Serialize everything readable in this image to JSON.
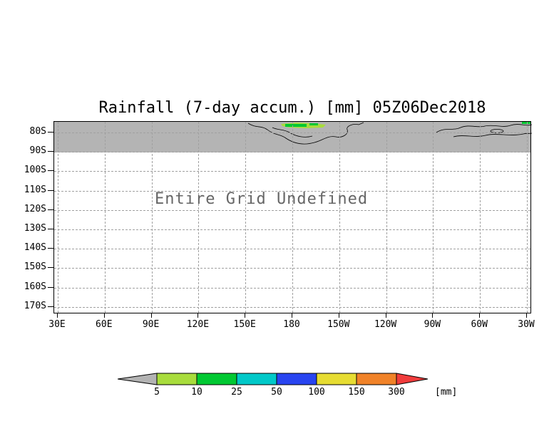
{
  "title": "Rainfall (7-day accum.) [mm] 05Z06Dec2018",
  "plot": {
    "annotation": "Entire Grid Undefined",
    "band_color": "#b4b4b4",
    "lat_ticks": [
      "80S",
      "90S",
      "100S",
      "110S",
      "120S",
      "130S",
      "140S",
      "150S",
      "160S",
      "170S"
    ],
    "lon_ticks": [
      "30E",
      "60E",
      "90E",
      "120E",
      "150E",
      "180",
      "150W",
      "120W",
      "90W",
      "60W",
      "30W"
    ]
  },
  "colorbar": {
    "boundaries": [
      "5",
      "10",
      "25",
      "50",
      "100",
      "150",
      "300"
    ],
    "colors": [
      "#b3b3b3",
      "#a8dc3c",
      "#00c832",
      "#00c8c8",
      "#2844f0",
      "#e6dc32",
      "#f08228",
      "#f03c3c"
    ],
    "unit": "[mm]"
  },
  "chart_data": {
    "type": "heatmap",
    "title": "Rainfall (7-day accum.) [mm] 05Z06Dec2018",
    "variable": "Rainfall (7-day accumulation)",
    "units": "mm",
    "time": "05Z06Dec2018",
    "x_tick_labels": [
      "30E",
      "60E",
      "90E",
      "120E",
      "150E",
      "180",
      "150W",
      "120W",
      "90W",
      "60W",
      "30W"
    ],
    "y_tick_labels": [
      "80S",
      "90S",
      "100S",
      "110S",
      "120S",
      "130S",
      "140S",
      "150S",
      "160S",
      "170S"
    ],
    "values": null,
    "status": "Entire Grid Undefined",
    "annotations": [
      "Entire Grid Undefined"
    ],
    "colorbar": {
      "levels": [
        5,
        10,
        25,
        50,
        100,
        150,
        300
      ],
      "colors": [
        "#b3b3b3",
        "#a8dc3c",
        "#00c832",
        "#00c8c8",
        "#2844f0",
        "#e6dc32",
        "#f08228",
        "#f03c3c"
      ],
      "unit": "[mm]"
    },
    "grid": "dashed",
    "notes": "Gray band across top of map (75S-90S) with coastline outlines and small green rainfall patches; remainder of grid undefined"
  }
}
